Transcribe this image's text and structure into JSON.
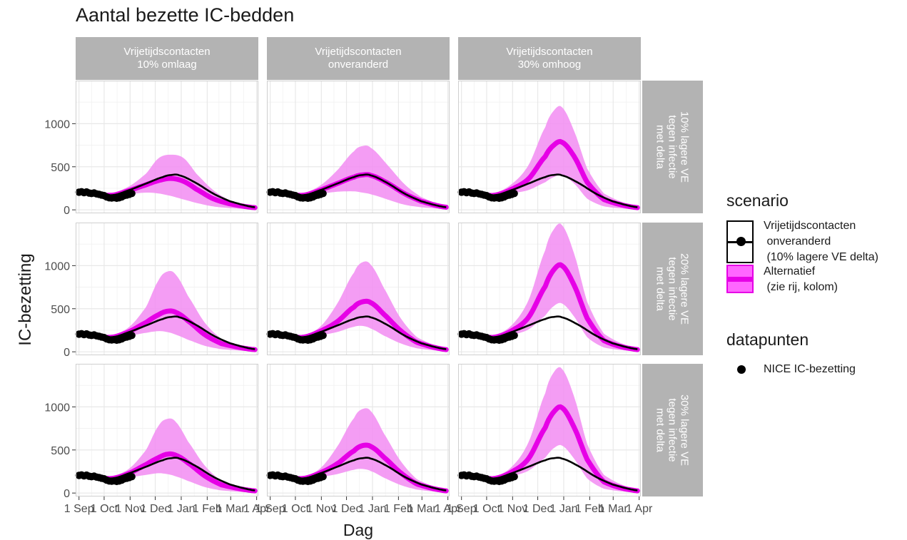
{
  "chart_data": {
    "type": "line",
    "title": "Aantal bezette IC-bedden",
    "xlabel": "Dag",
    "ylabel": "IC-bezetting",
    "column_facets": [
      "Vrijetijdscontacten\n10% omlaag",
      "Vrijetijdscontacten\nonveranderd",
      "Vrijetijdscontacten\n30% omhoog"
    ],
    "row_facets": [
      "10% lagere VE\ntegen infectie\nmet delta",
      "20% lagere VE\ntegen infectie\nmet delta",
      "30% lagere VE\ntegen infectie\nmet delta"
    ],
    "x_tick_labels": [
      "1 Sep",
      "1 Oct",
      "1 Nov",
      "1 Dec",
      "1 Jan",
      "1 Feb",
      "1 Mar",
      "1 Apr"
    ],
    "x_ticks_days": [
      0,
      30,
      61,
      91,
      122,
      153,
      181,
      212
    ],
    "xlim_days": [
      -4,
      214
    ],
    "y_ticks": [
      0,
      500,
      1000
    ],
    "ylim": [
      -40,
      1500
    ],
    "grid": true,
    "baseline_series": {
      "name": "Vrijetijdscontacten onveranderd (10% lagere VE delta)",
      "color": "#000000",
      "x_days": [
        0,
        20,
        40,
        60,
        80,
        100,
        110,
        120,
        140,
        160,
        180,
        210
      ],
      "values": [
        215,
        185,
        170,
        230,
        305,
        380,
        405,
        400,
        310,
        190,
        100,
        30
      ]
    },
    "alternatief_series": [
      {
        "row": 0,
        "col": 0,
        "x_days": [
          0,
          20,
          40,
          60,
          80,
          95,
          110,
          125,
          140,
          160,
          180,
          210
        ],
        "values": [
          215,
          185,
          170,
          225,
          290,
          340,
          365,
          330,
          240,
          130,
          70,
          25
        ],
        "lower": [
          190,
          160,
          145,
          180,
          200,
          190,
          160,
          120,
          80,
          40,
          20,
          5
        ],
        "upper": [
          240,
          210,
          200,
          275,
          420,
          600,
          640,
          600,
          420,
          230,
          110,
          40
        ]
      },
      {
        "row": 0,
        "col": 1,
        "x_days": [
          0,
          20,
          40,
          60,
          80,
          100,
          110,
          120,
          140,
          160,
          180,
          210
        ],
        "values": [
          215,
          185,
          170,
          230,
          305,
          380,
          405,
          400,
          310,
          190,
          100,
          30
        ],
        "lower": [
          190,
          160,
          145,
          185,
          210,
          215,
          200,
          180,
          120,
          60,
          30,
          8
        ],
        "upper": [
          240,
          210,
          200,
          285,
          460,
          680,
          740,
          720,
          520,
          300,
          150,
          45
        ]
      },
      {
        "row": 0,
        "col": 2,
        "x_days": [
          0,
          20,
          40,
          60,
          80,
          100,
          110,
          120,
          135,
          150,
          170,
          210
        ],
        "values": [
          215,
          185,
          170,
          240,
          360,
          620,
          750,
          785,
          610,
          320,
          120,
          25
        ],
        "lower": [
          190,
          160,
          145,
          190,
          230,
          320,
          380,
          400,
          300,
          130,
          40,
          5
        ],
        "upper": [
          240,
          210,
          200,
          300,
          520,
          960,
          1150,
          1190,
          900,
          480,
          190,
          40
        ]
      },
      {
        "row": 1,
        "col": 0,
        "x_days": [
          0,
          20,
          40,
          60,
          80,
          95,
          105,
          115,
          130,
          150,
          170,
          210
        ],
        "values": [
          215,
          185,
          170,
          235,
          340,
          430,
          470,
          460,
          360,
          200,
          95,
          25
        ],
        "lower": [
          190,
          160,
          145,
          185,
          220,
          240,
          230,
          200,
          140,
          70,
          30,
          5
        ],
        "upper": [
          240,
          210,
          200,
          290,
          520,
          830,
          930,
          900,
          650,
          340,
          150,
          40
        ]
      },
      {
        "row": 1,
        "col": 1,
        "x_days": [
          0,
          20,
          40,
          60,
          80,
          100,
          110,
          120,
          135,
          155,
          175,
          210
        ],
        "values": [
          215,
          185,
          170,
          240,
          350,
          520,
          580,
          570,
          440,
          250,
          110,
          25
        ],
        "lower": [
          190,
          160,
          145,
          190,
          230,
          290,
          300,
          270,
          190,
          100,
          40,
          5
        ],
        "upper": [
          240,
          210,
          200,
          295,
          560,
          920,
          1040,
          1010,
          750,
          400,
          170,
          40
        ]
      },
      {
        "row": 1,
        "col": 2,
        "x_days": [
          0,
          20,
          40,
          60,
          80,
          100,
          110,
          120,
          135,
          150,
          170,
          210
        ],
        "values": [
          215,
          185,
          170,
          245,
          400,
          760,
          950,
          1000,
          760,
          390,
          130,
          25
        ],
        "lower": [
          190,
          160,
          145,
          195,
          260,
          420,
          530,
          560,
          400,
          170,
          50,
          5
        ],
        "upper": [
          240,
          210,
          200,
          310,
          600,
          1180,
          1420,
          1470,
          1120,
          580,
          210,
          40
        ]
      },
      {
        "row": 2,
        "col": 0,
        "x_days": [
          0,
          20,
          40,
          60,
          80,
          95,
          105,
          115,
          130,
          150,
          170,
          210
        ],
        "values": [
          215,
          185,
          170,
          230,
          330,
          410,
          450,
          440,
          350,
          200,
          95,
          25
        ],
        "lower": [
          190,
          160,
          145,
          180,
          210,
          230,
          220,
          195,
          140,
          70,
          30,
          5
        ],
        "upper": [
          240,
          210,
          200,
          285,
          500,
          780,
          860,
          830,
          600,
          320,
          140,
          40
        ]
      },
      {
        "row": 2,
        "col": 1,
        "x_days": [
          0,
          20,
          40,
          60,
          80,
          100,
          110,
          120,
          135,
          155,
          175,
          210
        ],
        "values": [
          215,
          185,
          170,
          235,
          340,
          490,
          550,
          540,
          420,
          240,
          105,
          25
        ],
        "lower": [
          190,
          160,
          145,
          185,
          220,
          270,
          280,
          255,
          180,
          95,
          40,
          5
        ],
        "upper": [
          240,
          210,
          200,
          290,
          540,
          870,
          975,
          950,
          700,
          380,
          160,
          40
        ]
      },
      {
        "row": 2,
        "col": 2,
        "x_days": [
          0,
          20,
          40,
          60,
          80,
          100,
          110,
          120,
          135,
          150,
          170,
          210
        ],
        "values": [
          215,
          185,
          170,
          245,
          400,
          760,
          940,
          990,
          750,
          390,
          130,
          25
        ],
        "lower": [
          190,
          160,
          145,
          195,
          260,
          410,
          520,
          550,
          390,
          170,
          50,
          5
        ],
        "upper": [
          240,
          210,
          200,
          305,
          590,
          1160,
          1400,
          1440,
          1100,
          570,
          210,
          40
        ]
      }
    ],
    "datapoints": {
      "name": "NICE IC-bezetting",
      "x_days": [
        0,
        3,
        6,
        9,
        12,
        15,
        18,
        21,
        24,
        27,
        30,
        33,
        36,
        39,
        42,
        45,
        48,
        51,
        54,
        57,
        60,
        63
      ],
      "values": [
        205,
        210,
        200,
        208,
        195,
        190,
        196,
        185,
        180,
        172,
        165,
        150,
        140,
        138,
        142,
        135,
        140,
        150,
        165,
        172,
        180,
        190
      ]
    }
  },
  "legend": {
    "scenario_title": "scenario",
    "scenario_items": [
      {
        "label": "Vrijetijdscontacten\n onveranderd\n (10% lagere VE delta)",
        "color": "#000000",
        "fill": "#ffffff"
      },
      {
        "label": "Alternatief\n (zie rij, kolom)",
        "color": "#e600e6",
        "fill": "#ff66ff"
      }
    ],
    "datapunten_title": "datapunten",
    "datapunten_label": "NICE IC-bezetting"
  },
  "colors": {
    "panel_background": "#ffffff",
    "grid": "#e8e8e8",
    "strip_background": "#b3b3b3",
    "strip_text": "#ffffff",
    "ribbon": "#f28cf2",
    "alternatief_line": "#e600e6",
    "baseline_line": "#000000",
    "points": "#000000"
  }
}
